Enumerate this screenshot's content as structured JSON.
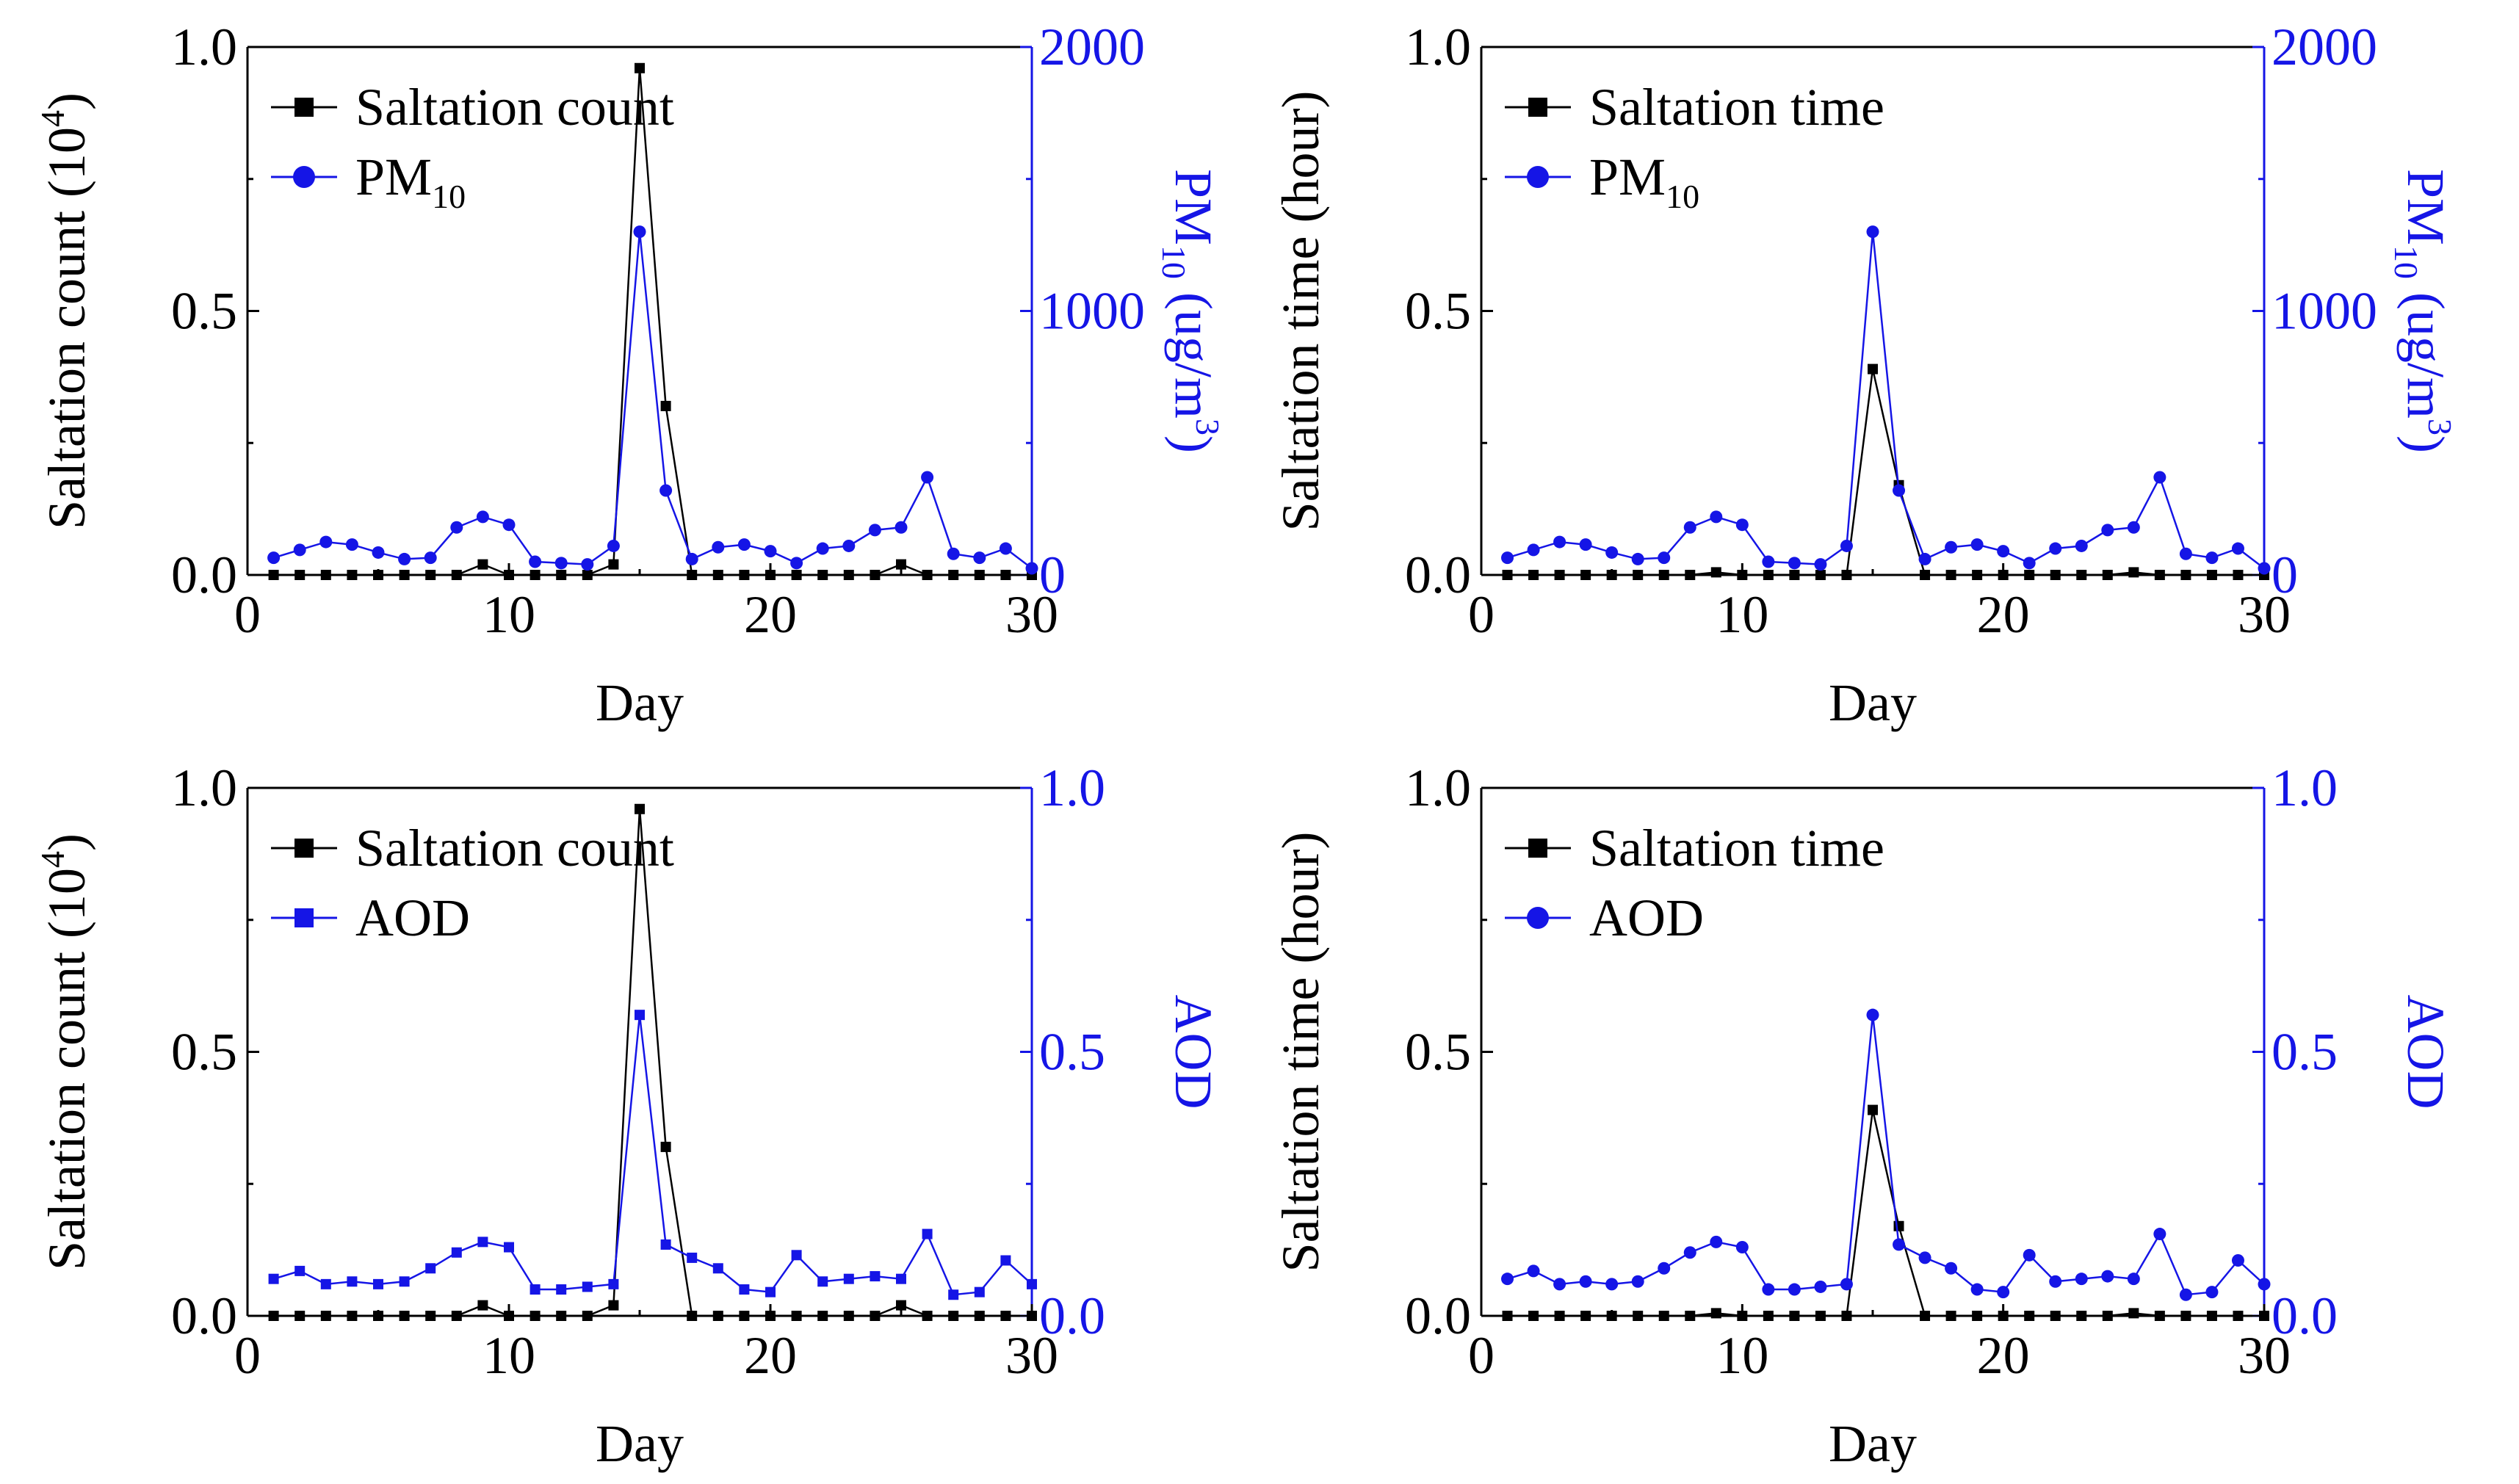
{
  "figure": {
    "name": "saltation-pm10-aod-figure"
  },
  "colors": {
    "primary": "#000000",
    "secondary": "#1515e6"
  },
  "chart_data": [
    {
      "type": "line",
      "id": "panel-a",
      "xlabel": "Day",
      "ylabel_main": "Saltation count (10",
      "ylabel_sup": "4",
      "ylabel_tail": ")",
      "ylabel2_main": "PM",
      "ylabel2_sub": "10",
      "ylabel2_unit": " (ug/m",
      "ylabel2_sup": "3",
      "ylabel2_tail": ")",
      "xlim": [
        0,
        30
      ],
      "ylim": [
        0,
        1.0
      ],
      "y2lim": [
        0,
        2000
      ],
      "xticks": [
        "0",
        "10",
        "20",
        "30"
      ],
      "yticks": [
        "0.0",
        "0.5",
        "1.0"
      ],
      "y2ticks": [
        "0",
        "1000",
        "2000"
      ],
      "legend_placement": "top-left",
      "series": [
        {
          "name": "Saltation count",
          "name_sub": "",
          "axis": "left",
          "marker": "square",
          "x": [
            1,
            2,
            3,
            4,
            5,
            6,
            7,
            8,
            9,
            10,
            11,
            12,
            13,
            14,
            15,
            16,
            17,
            18,
            19,
            20,
            21,
            22,
            23,
            24,
            25,
            26,
            27,
            28,
            29,
            30
          ],
          "values": [
            0,
            0,
            0,
            0,
            0,
            0,
            0,
            0,
            0.02,
            0,
            0,
            0,
            0,
            0.02,
            0.96,
            0.32,
            0,
            0,
            0,
            0,
            0,
            0,
            0,
            0,
            0.02,
            0,
            0,
            0,
            0,
            0
          ]
        },
        {
          "name": "PM",
          "name_sub": "10",
          "axis": "right",
          "marker": "circle",
          "x": [
            1,
            2,
            3,
            4,
            5,
            6,
            7,
            8,
            9,
            10,
            11,
            12,
            13,
            14,
            15,
            16,
            17,
            18,
            19,
            20,
            21,
            22,
            23,
            24,
            25,
            26,
            27,
            28,
            29,
            30
          ],
          "values": [
            65,
            95,
            125,
            115,
            85,
            60,
            65,
            180,
            220,
            190,
            50,
            45,
            40,
            110,
            1300,
            320,
            60,
            105,
            115,
            90,
            45,
            100,
            110,
            170,
            180,
            370,
            80,
            65,
            100,
            25
          ]
        }
      ]
    },
    {
      "type": "line",
      "id": "panel-b",
      "xlabel": "Day",
      "ylabel_main": "Saltation time (hour)",
      "ylabel_sup": "",
      "ylabel_tail": "",
      "ylabel2_main": "PM",
      "ylabel2_sub": "10",
      "ylabel2_unit": " (ug/m",
      "ylabel2_sup": "3",
      "ylabel2_tail": ")",
      "xlim": [
        0,
        30
      ],
      "ylim": [
        0,
        1.0
      ],
      "y2lim": [
        0,
        2000
      ],
      "xticks": [
        "0",
        "10",
        "20",
        "30"
      ],
      "yticks": [
        "0.0",
        "0.5",
        "1.0"
      ],
      "y2ticks": [
        "0",
        "1000",
        "2000"
      ],
      "legend_placement": "top-left",
      "series": [
        {
          "name": "Saltation time",
          "name_sub": "",
          "axis": "left",
          "marker": "square",
          "x": [
            1,
            2,
            3,
            4,
            5,
            6,
            7,
            8,
            9,
            10,
            11,
            12,
            13,
            14,
            15,
            16,
            17,
            18,
            19,
            20,
            21,
            22,
            23,
            24,
            25,
            26,
            27,
            28,
            29,
            30
          ],
          "values": [
            0,
            0,
            0,
            0,
            0,
            0,
            0,
            0,
            0.005,
            0,
            0,
            0,
            0,
            0,
            0.39,
            0.17,
            0,
            0,
            0,
            0,
            0,
            0,
            0,
            0,
            0.005,
            0,
            0,
            0,
            0,
            0
          ]
        },
        {
          "name": "PM",
          "name_sub": "10",
          "axis": "right",
          "marker": "circle",
          "x": [
            1,
            2,
            3,
            4,
            5,
            6,
            7,
            8,
            9,
            10,
            11,
            12,
            13,
            14,
            15,
            16,
            17,
            18,
            19,
            20,
            21,
            22,
            23,
            24,
            25,
            26,
            27,
            28,
            29,
            30
          ],
          "values": [
            65,
            95,
            125,
            115,
            85,
            60,
            65,
            180,
            220,
            190,
            50,
            45,
            40,
            110,
            1300,
            320,
            60,
            105,
            115,
            90,
            45,
            100,
            110,
            170,
            180,
            370,
            80,
            65,
            100,
            25
          ]
        }
      ]
    },
    {
      "type": "line",
      "id": "panel-c",
      "xlabel": "Day",
      "ylabel_main": "Saltation count (10",
      "ylabel_sup": "4",
      "ylabel_tail": ")",
      "ylabel2_main": "AOD",
      "ylabel2_sub": "",
      "ylabel2_unit": "",
      "ylabel2_sup": "",
      "ylabel2_tail": "",
      "xlim": [
        0,
        30
      ],
      "ylim": [
        0,
        1.0
      ],
      "y2lim": [
        0,
        1.0
      ],
      "xticks": [
        "0",
        "10",
        "20",
        "30"
      ],
      "yticks": [
        "0.0",
        "0.5",
        "1.0"
      ],
      "y2ticks": [
        "0.0",
        "0.5",
        "1.0"
      ],
      "legend_placement": "top-left",
      "series": [
        {
          "name": "Saltation count",
          "name_sub": "",
          "axis": "left",
          "marker": "square",
          "x": [
            1,
            2,
            3,
            4,
            5,
            6,
            7,
            8,
            9,
            10,
            11,
            12,
            13,
            14,
            15,
            16,
            17,
            18,
            19,
            20,
            21,
            22,
            23,
            24,
            25,
            26,
            27,
            28,
            29,
            30
          ],
          "values": [
            0,
            0,
            0,
            0,
            0,
            0,
            0,
            0,
            0.02,
            0,
            0,
            0,
            0,
            0.02,
            0.96,
            0.32,
            0,
            0,
            0,
            0,
            0,
            0,
            0,
            0,
            0.02,
            0,
            0,
            0,
            0,
            0
          ]
        },
        {
          "name": "AOD",
          "name_sub": "",
          "axis": "right",
          "marker": "square",
          "x": [
            1,
            2,
            3,
            4,
            5,
            6,
            7,
            8,
            9,
            10,
            11,
            12,
            13,
            14,
            15,
            16,
            17,
            18,
            19,
            20,
            21,
            22,
            23,
            24,
            25,
            26,
            27,
            28,
            29,
            30
          ],
          "values": [
            0.07,
            0.085,
            0.06,
            0.065,
            0.06,
            0.065,
            0.09,
            0.12,
            0.14,
            0.13,
            0.05,
            0.05,
            0.055,
            0.06,
            0.57,
            0.135,
            0.11,
            0.09,
            0.05,
            0.045,
            0.115,
            0.065,
            0.07,
            0.075,
            0.07,
            0.155,
            0.04,
            0.045,
            0.105,
            0.06
          ]
        }
      ]
    },
    {
      "type": "line",
      "id": "panel-d",
      "xlabel": "Day",
      "ylabel_main": "Saltation time (hour)",
      "ylabel_sup": "",
      "ylabel_tail": "",
      "ylabel2_main": "AOD",
      "ylabel2_sub": "",
      "ylabel2_unit": "",
      "ylabel2_sup": "",
      "ylabel2_tail": "",
      "xlim": [
        0,
        30
      ],
      "ylim": [
        0,
        1.0
      ],
      "y2lim": [
        0,
        1.0
      ],
      "xticks": [
        "0",
        "10",
        "20",
        "30"
      ],
      "yticks": [
        "0.0",
        "0.5",
        "1.0"
      ],
      "y2ticks": [
        "0.0",
        "0.5",
        "1.0"
      ],
      "legend_placement": "top-left",
      "series": [
        {
          "name": "Saltation time",
          "name_sub": "",
          "axis": "left",
          "marker": "square",
          "x": [
            1,
            2,
            3,
            4,
            5,
            6,
            7,
            8,
            9,
            10,
            11,
            12,
            13,
            14,
            15,
            16,
            17,
            18,
            19,
            20,
            21,
            22,
            23,
            24,
            25,
            26,
            27,
            28,
            29,
            30
          ],
          "values": [
            0,
            0,
            0,
            0,
            0,
            0,
            0,
            0,
            0.005,
            0,
            0,
            0,
            0,
            0,
            0.39,
            0.17,
            0,
            0,
            0,
            0,
            0,
            0,
            0,
            0,
            0.005,
            0,
            0,
            0,
            0,
            0
          ]
        },
        {
          "name": "AOD",
          "name_sub": "",
          "axis": "right",
          "marker": "circle",
          "x": [
            1,
            2,
            3,
            4,
            5,
            6,
            7,
            8,
            9,
            10,
            11,
            12,
            13,
            14,
            15,
            16,
            17,
            18,
            19,
            20,
            21,
            22,
            23,
            24,
            25,
            26,
            27,
            28,
            29,
            30
          ],
          "values": [
            0.07,
            0.085,
            0.06,
            0.065,
            0.06,
            0.065,
            0.09,
            0.12,
            0.14,
            0.13,
            0.05,
            0.05,
            0.055,
            0.06,
            0.57,
            0.135,
            0.11,
            0.09,
            0.05,
            0.045,
            0.115,
            0.065,
            0.07,
            0.075,
            0.07,
            0.155,
            0.04,
            0.045,
            0.105,
            0.06
          ]
        }
      ]
    }
  ]
}
